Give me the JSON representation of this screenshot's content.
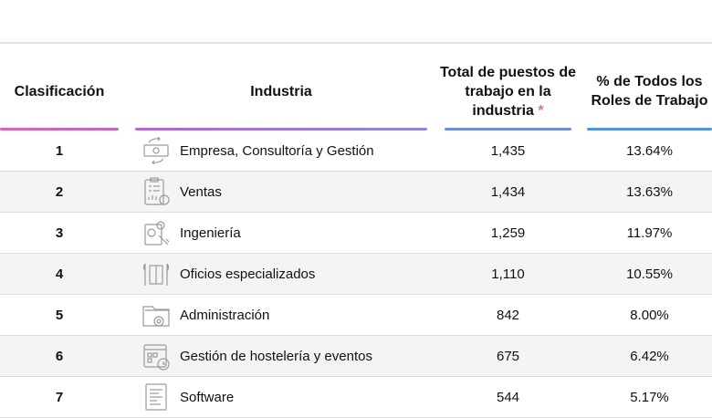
{
  "headers": {
    "rank": "Clasificación",
    "industry": "Industria",
    "total": "Total de puestos de trabajo en la industria",
    "total_mark": "*",
    "percent": "% de Todos los Roles de Trabajo"
  },
  "colors": {
    "pink": "#d965b0",
    "purple": "#a56fd8",
    "blue": "#5a8fe3",
    "row_alt": "#f4f4f4"
  },
  "rows": [
    {
      "rank": "1",
      "industry": "Empresa, Consultoría y Gestión",
      "icon": "money-exchange-icon",
      "total": "1,435",
      "percent": "13.64%"
    },
    {
      "rank": "2",
      "industry": "Ventas",
      "icon": "sales-report-icon",
      "total": "1,434",
      "percent": "13.63%"
    },
    {
      "rank": "3",
      "industry": "Ingeniería",
      "icon": "engineering-gears-icon",
      "total": "1,259",
      "percent": "11.97%"
    },
    {
      "rank": "4",
      "industry": "Oficios especializados",
      "icon": "tools-icon",
      "total": "1,110",
      "percent": "10.55%"
    },
    {
      "rank": "5",
      "industry": "Administración",
      "icon": "folder-gear-icon",
      "total": "842",
      "percent": "8.00%"
    },
    {
      "rank": "6",
      "industry": "Gestión de hostelería y eventos",
      "icon": "calendar-clock-icon",
      "total": "675",
      "percent": "6.42%"
    },
    {
      "rank": "7",
      "industry": "Software",
      "icon": "code-document-icon",
      "total": "544",
      "percent": "5.17%"
    }
  ]
}
